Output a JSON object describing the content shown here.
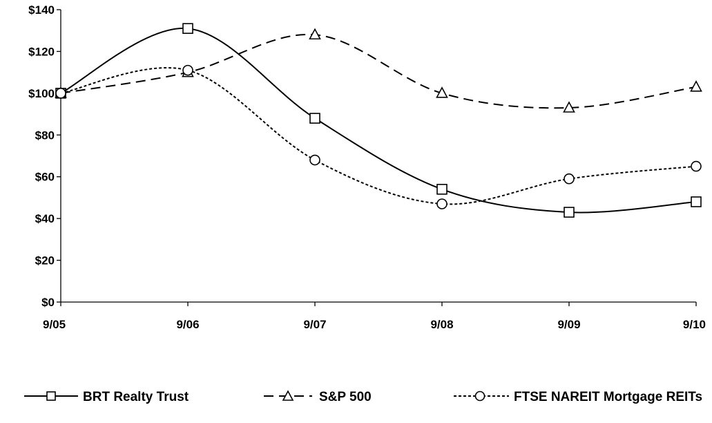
{
  "chart_data": {
    "type": "line",
    "title": "",
    "xlabel": "",
    "ylabel": "",
    "categories": [
      "9/05",
      "9/06",
      "9/07",
      "9/08",
      "9/09",
      "9/10"
    ],
    "ylim": [
      0,
      140
    ],
    "yticks": [
      {
        "value": 0,
        "label": "$0"
      },
      {
        "value": 20,
        "label": "$20"
      },
      {
        "value": 40,
        "label": "$40"
      },
      {
        "value": 60,
        "label": "$60"
      },
      {
        "value": 80,
        "label": "$80"
      },
      {
        "value": 100,
        "label": "$100"
      },
      {
        "value": 120,
        "label": "$120"
      },
      {
        "value": 140,
        "label": "$140"
      }
    ],
    "grid": false,
    "legend": "bottom",
    "series": [
      {
        "name": "BRT Realty Trust",
        "values": [
          100,
          131,
          88,
          54,
          43,
          48
        ],
        "marker": "square",
        "dash": "solid"
      },
      {
        "name": "S&P 500",
        "values": [
          100,
          110,
          128,
          100,
          93,
          103
        ],
        "marker": "triangle",
        "dash": "long-dash"
      },
      {
        "name": "FTSE NAREIT Mortgage REITs",
        "values": [
          100,
          111,
          68,
          47,
          59,
          65
        ],
        "marker": "circle",
        "dash": "short-dash"
      }
    ]
  }
}
